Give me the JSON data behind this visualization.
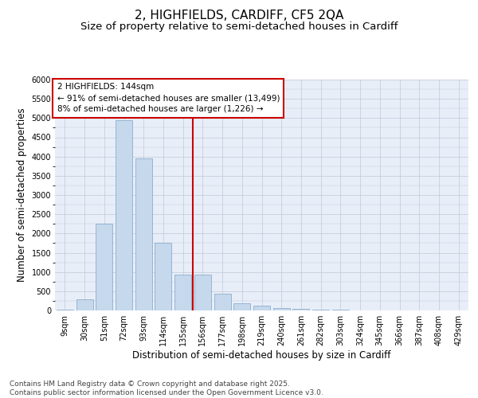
{
  "title_line1": "2, HIGHFIELDS, CARDIFF, CF5 2QA",
  "title_line2": "Size of property relative to semi-detached houses in Cardiff",
  "xlabel": "Distribution of semi-detached houses by size in Cardiff",
  "ylabel": "Number of semi-detached properties",
  "categories": [
    "9sqm",
    "30sqm",
    "51sqm",
    "72sqm",
    "93sqm",
    "114sqm",
    "135sqm",
    "156sqm",
    "177sqm",
    "198sqm",
    "219sqm",
    "240sqm",
    "261sqm",
    "282sqm",
    "303sqm",
    "324sqm",
    "345sqm",
    "366sqm",
    "387sqm",
    "408sqm",
    "429sqm"
  ],
  "values": [
    30,
    280,
    2250,
    4950,
    3950,
    1750,
    930,
    930,
    430,
    180,
    120,
    60,
    35,
    20,
    15,
    8,
    5,
    3,
    2,
    1,
    0
  ],
  "bar_color": "#c5d8ec",
  "bar_edge_color": "#8eaece",
  "vline_index": 7,
  "vline_color": "#cc0000",
  "annotation_text": "2 HIGHFIELDS: 144sqm\n← 91% of semi-detached houses are smaller (13,499)\n8% of semi-detached houses are larger (1,226) →",
  "annotation_box_color": "#cc0000",
  "ylim": [
    0,
    6000
  ],
  "yticks": [
    0,
    500,
    1000,
    1500,
    2000,
    2500,
    3000,
    3500,
    4000,
    4500,
    5000,
    5500,
    6000
  ],
  "grid_color": "#c0c8d8",
  "bg_color": "#e8eef8",
  "footer": "Contains HM Land Registry data © Crown copyright and database right 2025.\nContains public sector information licensed under the Open Government Licence v3.0.",
  "title_fontsize": 11,
  "subtitle_fontsize": 9.5,
  "tick_fontsize": 7,
  "label_fontsize": 8.5,
  "footer_fontsize": 6.5
}
